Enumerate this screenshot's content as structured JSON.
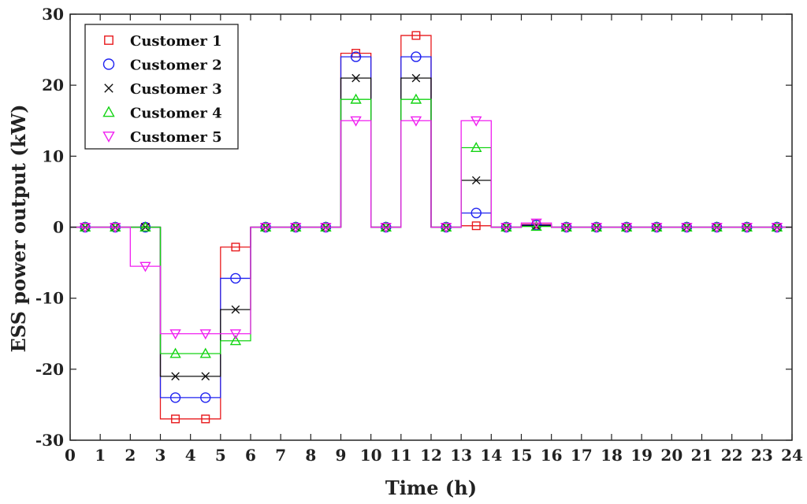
{
  "chart_data": {
    "type": "line",
    "step": true,
    "xlabel": "Time (h)",
    "ylabel": "ESS power output (kW)",
    "xlim": [
      0,
      24
    ],
    "ylim": [
      -30,
      30
    ],
    "xticks": [
      0,
      1,
      2,
      3,
      4,
      5,
      6,
      7,
      8,
      9,
      10,
      11,
      12,
      13,
      14,
      15,
      16,
      17,
      18,
      19,
      20,
      21,
      22,
      23,
      24
    ],
    "yticks": [
      -30,
      -20,
      -10,
      0,
      10,
      20,
      30
    ],
    "grid": false,
    "legend_position": "top-left",
    "x": [
      0.5,
      1.5,
      2.5,
      3.5,
      4.5,
      5.5,
      6.5,
      7.5,
      8.5,
      9.5,
      10.5,
      11.5,
      12.5,
      13.5,
      14.5,
      15.5,
      16.5,
      17.5,
      18.5,
      19.5,
      20.5,
      21.5,
      22.5,
      23.5
    ],
    "series": [
      {
        "name": "Customer 1",
        "color": "#e8191c",
        "marker": "square",
        "values": [
          0,
          0,
          0,
          -27,
          -27,
          -2.8,
          0,
          0,
          0,
          24.5,
          0,
          27,
          0,
          0.2,
          0,
          0.4,
          0,
          0,
          0,
          0,
          0,
          0,
          0,
          0
        ]
      },
      {
        "name": "Customer 2",
        "color": "#1f22f0",
        "marker": "circle",
        "values": [
          0,
          0,
          0,
          -24,
          -24,
          -7.2,
          0,
          0,
          0,
          24,
          0,
          24,
          0,
          2,
          0,
          0.3,
          0,
          0,
          0,
          0,
          0,
          0,
          0,
          0
        ]
      },
      {
        "name": "Customer 3",
        "color": "#111111",
        "marker": "x",
        "values": [
          0,
          0,
          0,
          -21,
          -21,
          -11.6,
          0,
          0,
          0,
          21,
          0,
          21,
          0,
          6.6,
          0,
          0.2,
          0,
          0,
          0,
          0,
          0,
          0,
          0,
          0
        ]
      },
      {
        "name": "Customer 4",
        "color": "#14d414",
        "marker": "triangle-up",
        "values": [
          0,
          0,
          0,
          -17.8,
          -17.8,
          -16,
          0,
          0,
          0,
          18,
          0,
          18,
          0,
          11.2,
          0,
          0.1,
          0,
          0,
          0,
          0,
          0,
          0,
          0,
          0
        ]
      },
      {
        "name": "Customer 5",
        "color": "#f01ff0",
        "marker": "triangle-down",
        "values": [
          0,
          0,
          -5.5,
          -15,
          -15,
          -15,
          0,
          0,
          0,
          15,
          0,
          15,
          0,
          15,
          0,
          0.6,
          0,
          0,
          0,
          0,
          0,
          0,
          0,
          0
        ]
      }
    ]
  }
}
